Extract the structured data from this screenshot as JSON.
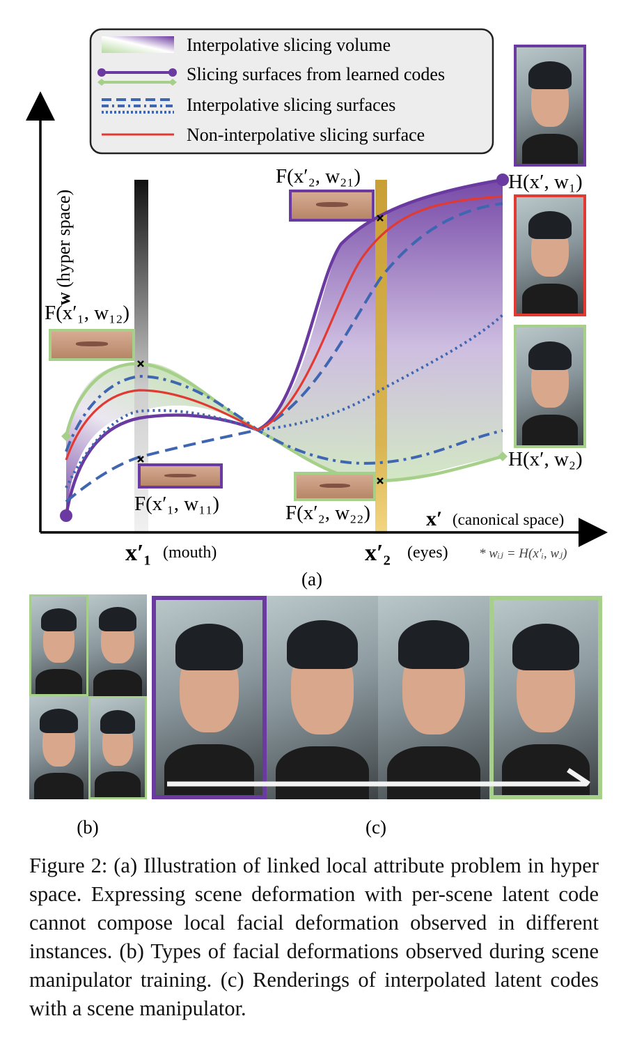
{
  "legend": {
    "volume": "Interpolative slicing volume",
    "learned": "Slicing surfaces from learned codes",
    "interp": "Interpolative slicing surfaces",
    "noninterp": "Non-interpolative slicing surface"
  },
  "axes": {
    "y_label_bold": "w",
    "y_label_rest": " (hyper space)",
    "x_label_bold": "x′",
    "x_label_rest": "(canonical space)",
    "x1_tick": "x′₁",
    "x1_note": "(mouth)",
    "x2_tick": "x′₂",
    "x2_note": "(eyes)",
    "footnote": "* wᵢⱼ = H(x′ᵢ, wⱼ)"
  },
  "annotations": {
    "f_x2_w21": "F(x′₂, w₂₁)",
    "f_x1_w12": "F(x′₁, w₁₂)",
    "f_x1_w11": "F(x′₁, w₁₁)",
    "f_x2_w22": "F(x′₂, w₂₂)",
    "h_w1": "H(x′, w₁)",
    "h_w2": "H(x′, w₂)"
  },
  "colors": {
    "purple": "#6b3aa0",
    "green": "#a6cf8a",
    "blue": "#3f66b0",
    "red": "#e03a33",
    "gold": "#c9a035"
  },
  "panels": {
    "a": "(a)",
    "b": "(b)",
    "c": "(c)"
  },
  "caption": "Figure 2: (a) Illustration of linked local attribute problem in hyper space. Expressing scene deformation with per-scene latent code cannot compose local facial deformation observed in different instances. (b) Types of facial deformations observed during scene manipulator training. (c) Renderings of interpolated latent codes with a scene manipulator."
}
